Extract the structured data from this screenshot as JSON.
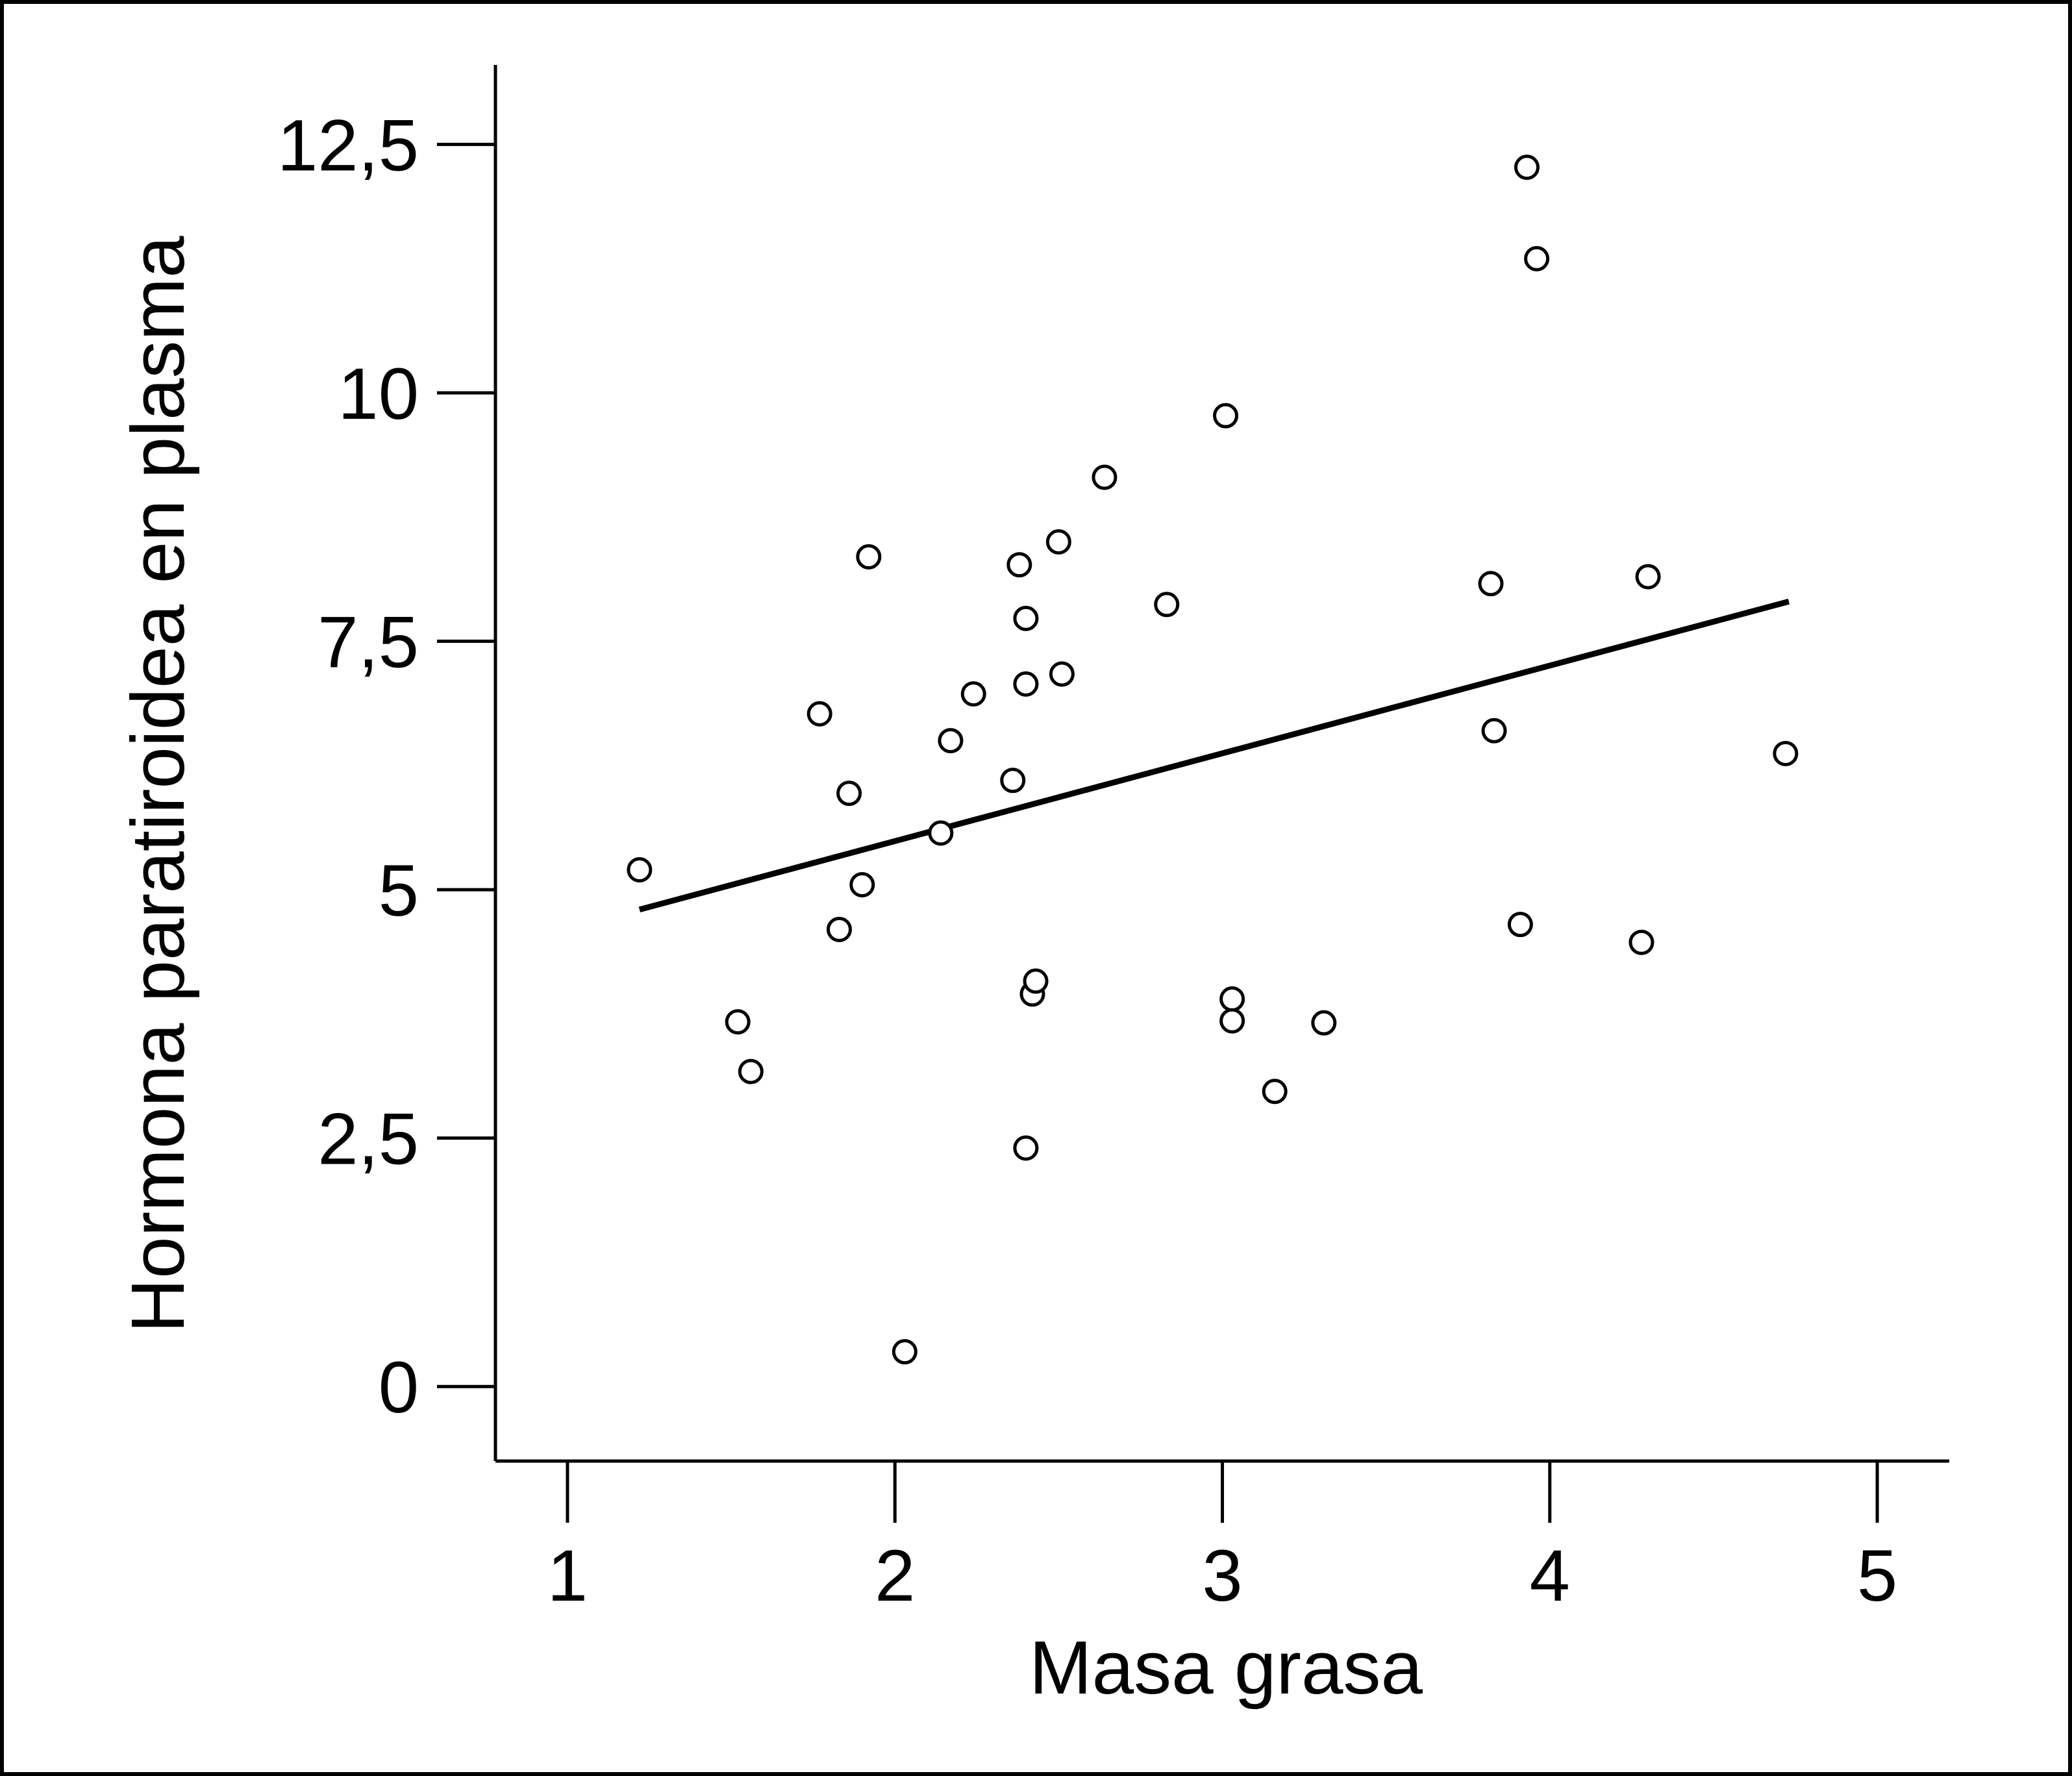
{
  "chart_data": {
    "type": "scatter",
    "xlabel": "Masa grasa",
    "ylabel": "Hormona paratiroidea en plasma",
    "xlim": [
      0.78,
      5.22
    ],
    "ylim": [
      -0.75,
      13.3
    ],
    "x_ticks": [
      1,
      2,
      3,
      4,
      5
    ],
    "x_tick_labels": [
      "1",
      "2",
      "3",
      "4",
      "5"
    ],
    "y_ticks": [
      0,
      2.5,
      5,
      7.5,
      10,
      12.5
    ],
    "y_tick_labels": [
      "0",
      "2,5",
      "5",
      "7,5",
      "10",
      "12,5"
    ],
    "grid": false,
    "legend": "none",
    "points": [
      {
        "x": 1.22,
        "y": 5.2
      },
      {
        "x": 1.52,
        "y": 3.67
      },
      {
        "x": 1.56,
        "y": 3.17
      },
      {
        "x": 1.77,
        "y": 6.77
      },
      {
        "x": 1.83,
        "y": 4.6
      },
      {
        "x": 1.86,
        "y": 5.97
      },
      {
        "x": 1.9,
        "y": 5.05
      },
      {
        "x": 1.92,
        "y": 8.35
      },
      {
        "x": 2.03,
        "y": 0.35
      },
      {
        "x": 2.14,
        "y": 5.57
      },
      {
        "x": 2.17,
        "y": 6.5
      },
      {
        "x": 2.24,
        "y": 6.97
      },
      {
        "x": 2.36,
        "y": 6.1
      },
      {
        "x": 2.38,
        "y": 8.27
      },
      {
        "x": 2.4,
        "y": 7.73
      },
      {
        "x": 2.4,
        "y": 7.07
      },
      {
        "x": 2.4,
        "y": 2.4
      },
      {
        "x": 2.42,
        "y": 3.95
      },
      {
        "x": 2.43,
        "y": 4.08
      },
      {
        "x": 2.5,
        "y": 8.5
      },
      {
        "x": 2.51,
        "y": 7.17
      },
      {
        "x": 2.64,
        "y": 9.15
      },
      {
        "x": 2.83,
        "y": 7.87
      },
      {
        "x": 3.01,
        "y": 9.77
      },
      {
        "x": 3.03,
        "y": 3.9
      },
      {
        "x": 3.03,
        "y": 3.68
      },
      {
        "x": 3.16,
        "y": 2.97
      },
      {
        "x": 3.31,
        "y": 3.66
      },
      {
        "x": 3.82,
        "y": 8.08
      },
      {
        "x": 3.83,
        "y": 6.6
      },
      {
        "x": 3.91,
        "y": 4.65
      },
      {
        "x": 3.93,
        "y": 12.27
      },
      {
        "x": 3.96,
        "y": 11.35
      },
      {
        "x": 4.28,
        "y": 4.47
      },
      {
        "x": 4.3,
        "y": 8.15
      },
      {
        "x": 4.72,
        "y": 6.37
      }
    ],
    "regression_line": {
      "x": [
        1.22,
        4.73
      ],
      "y": [
        4.8,
        7.9
      ]
    },
    "marker": "open-circle",
    "color": "#000000"
  }
}
